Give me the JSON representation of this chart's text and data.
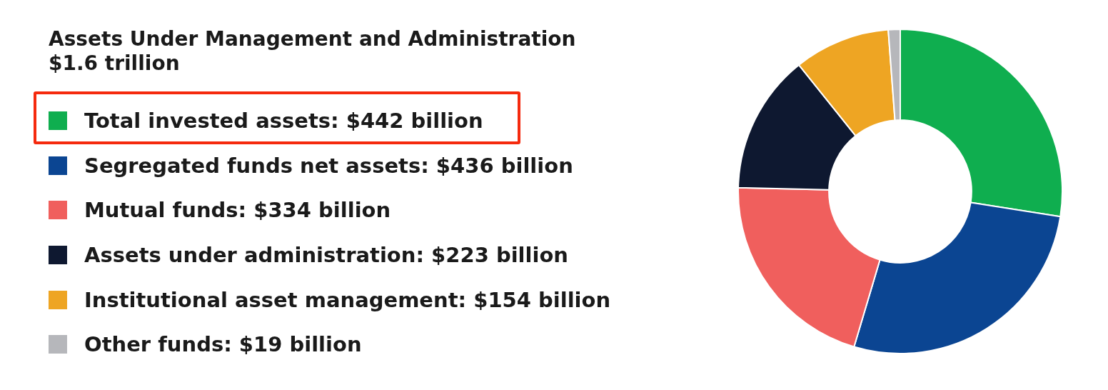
{
  "chart_data": {
    "type": "donut",
    "title": "Assets Under Management and Administration",
    "subtitle": "$1.6 trillion",
    "categories": [
      "Total invested assets: $442 billion",
      "Segregated funds net assets: $436 billion",
      "Mutual funds: $334 billion",
      "Assets under administration: $223 billion",
      "Institutional asset management: $154 billion",
      "Other funds: $19 billion"
    ],
    "values": [
      442,
      436,
      334,
      223,
      154,
      19
    ],
    "colors": [
      "#0fae4f",
      "#0b4592",
      "#f05f5d",
      "#0e1830",
      "#eea523",
      "#b6b7bb"
    ],
    "legend": "left"
  }
}
